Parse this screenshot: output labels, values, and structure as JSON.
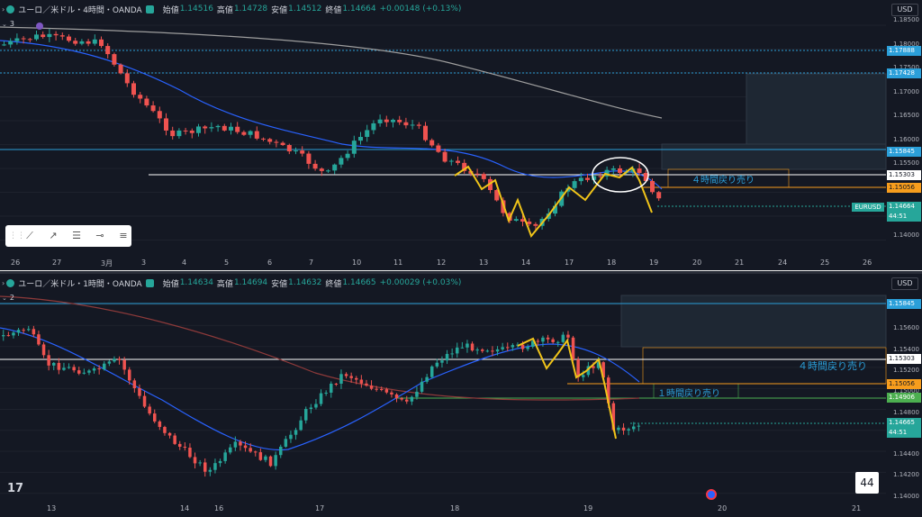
{
  "top": {
    "counter": "3",
    "symbol": "ユーロ／米ドル・4時間・OANDA",
    "ohlc": {
      "o_label": "始値",
      "o": "1.14516",
      "h_label": "高値",
      "h": "1.14728",
      "l_label": "安値",
      "l": "1.14512",
      "c_label": "終値",
      "c": "1.14664",
      "chg": "+0.00148 (+0.13%)"
    },
    "currency": "USD",
    "price_ticks": [
      "1.18500",
      "1.18000",
      "1.17500",
      "1.17000",
      "1.16500",
      "1.16000",
      "1.15500",
      "1.15000",
      "1.14500",
      "1.14000"
    ],
    "price_tags": [
      {
        "label": "1.17888",
        "color": "#2b9fd9"
      },
      {
        "label": "1.17428",
        "color": "#2b9fd9"
      },
      {
        "label": "1.15845",
        "color": "#2b9fd9"
      },
      {
        "label": "1.15303",
        "color": "#ffffff"
      },
      {
        "label": "1.15056",
        "color": "#f79d1d"
      },
      {
        "label": "1.14664",
        "color": "#26a69a"
      }
    ],
    "countdown": "44:51",
    "sym_tag": "EURUSD",
    "time_ticks": [
      "26",
      "27",
      "3月",
      "3",
      "4",
      "5",
      "6",
      "7",
      "10",
      "11",
      "12",
      "13",
      "14",
      "17",
      "18",
      "19",
      "20",
      "21",
      "24",
      "25",
      "26"
    ],
    "annotation": "４時間戻り売り",
    "tools": [
      "trend-line-icon",
      "ray-icon",
      "fib-icon",
      "horizontal-line-icon",
      "multi-line-icon"
    ]
  },
  "bottom": {
    "counter": "2",
    "symbol": "ユーロ／米ドル・1時間・OANDA",
    "ohlc": {
      "o_label": "始値",
      "o": "1.14634",
      "h_label": "高値",
      "h": "1.14694",
      "l_label": "安値",
      "l": "1.14632",
      "c_label": "終値",
      "c": "1.14665",
      "chg": "+0.00029 (+0.03%)"
    },
    "currency": "USD",
    "price_ticks": [
      "1.15800",
      "1.15600",
      "1.15400",
      "1.15200",
      "1.15000",
      "1.14800",
      "1.14600",
      "1.14400",
      "1.14200",
      "1.14000"
    ],
    "price_tags": [
      {
        "label": "1.15845",
        "color": "#2b9fd9"
      },
      {
        "label": "1.15303",
        "color": "#ffffff"
      },
      {
        "label": "1.15056",
        "color": "#f79d1d"
      },
      {
        "label": "1.14906",
        "color": "#4caf50"
      },
      {
        "label": "1.14665",
        "color": "#26a69a"
      }
    ],
    "countdown": "44:51",
    "time_ticks": [
      "13",
      "14",
      "16",
      "17",
      "18",
      "19",
      "20",
      "21"
    ],
    "annotation_4h": "４時間戻り売り",
    "annotation_1h": "１時間戻り売り",
    "logo": "17",
    "count_box": "44"
  }
}
